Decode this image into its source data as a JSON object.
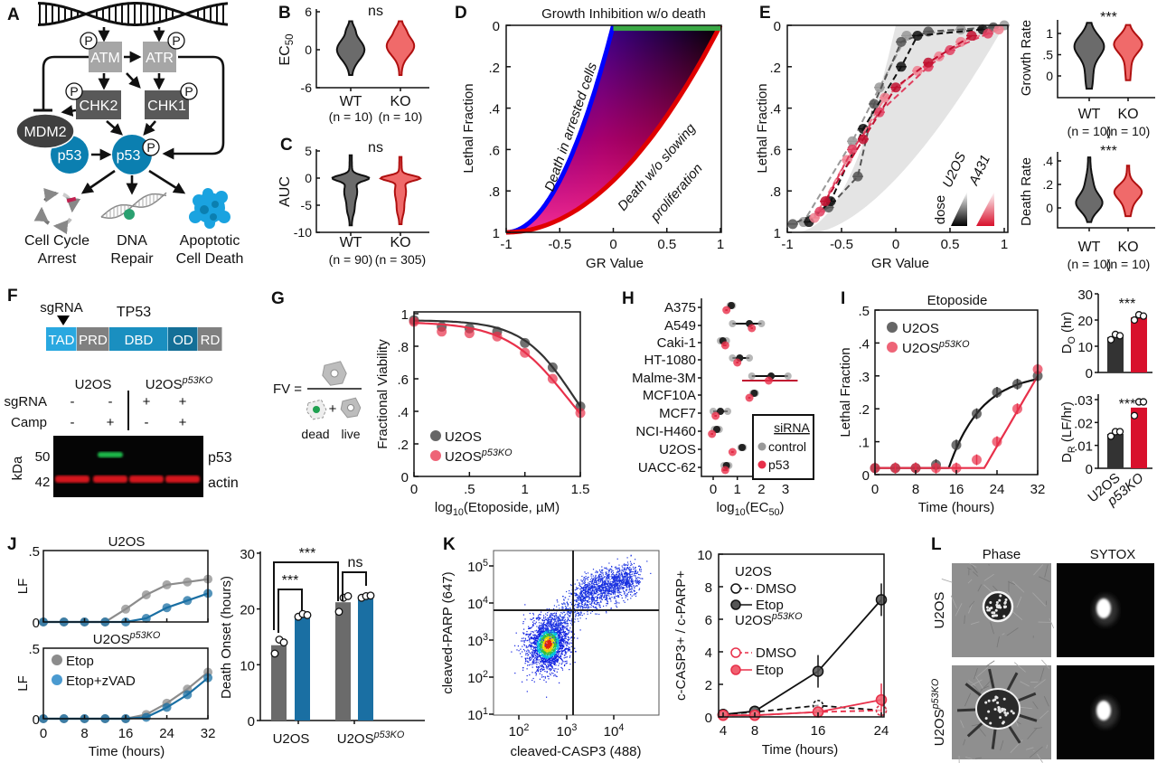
{
  "panel_letters": [
    "A",
    "B",
    "C",
    "D",
    "E",
    "F",
    "G",
    "H",
    "I",
    "J",
    "K",
    "L"
  ],
  "colors": {
    "wt": "#6b6b6b",
    "ko": "#f06a6a",
    "ko_stroke": "#b01010",
    "p53_blue": "#0b7fb0",
    "sig_red": "#e8202a",
    "ns_gray": "#a8a8a8",
    "zvad_blue": "#1a6fa3",
    "etop_gray": "#8c8c8c",
    "ko_red": "#d8102c"
  },
  "A": {
    "nodes": {
      "atm": "ATM",
      "atr": "ATR",
      "chk2": "CHK2",
      "chk1": "CHK1",
      "mdm2": "MDM2",
      "p53": "p53",
      "phospho": "P"
    },
    "outcomes": [
      {
        "line1": "Cell Cycle",
        "line2": "Arrest",
        "icon": "cell-cycle-icon"
      },
      {
        "line1": "DNA",
        "line2": "Repair",
        "icon": "dna-repair-icon"
      },
      {
        "line1": "Apoptotic",
        "line2": "Cell Death",
        "icon": "apoptotic-cell-icon"
      }
    ]
  },
  "B": {
    "ylabel": [
      {
        "text": "EC"
      },
      {
        "sub": "50"
      }
    ],
    "yticks": [
      "6",
      "0",
      "-6"
    ],
    "significance": "ns",
    "groups": [
      {
        "label": "WT",
        "n": "(n = 10)",
        "median": 0,
        "range": [
          -4,
          4.5
        ]
      },
      {
        "label": "KO",
        "n": "(n = 10)",
        "median": 0.5,
        "range": [
          -4,
          4.5
        ]
      }
    ]
  },
  "C": {
    "ylabel": "AUC",
    "yticks": [
      "5",
      "0",
      "-5",
      "-10"
    ],
    "significance": "ns",
    "groups": [
      {
        "label": "WT",
        "n": "(n = 90)",
        "mode": 0,
        "range": [
          -8.7,
          4.2
        ]
      },
      {
        "label": "KO",
        "n": "(n = 305)",
        "mode": 0,
        "range": [
          -8.5,
          3.9
        ]
      }
    ]
  },
  "D": {
    "title": "Growth Inhibition w/o death",
    "xlabel": "GR Value",
    "ylabel": "Lethal Fraction",
    "xticks": [
      "-1",
      "-0.5",
      "0",
      "0.5",
      "1"
    ],
    "yticks": [
      "0",
      ".2",
      ".4",
      ".6",
      ".8",
      "1"
    ],
    "annotation_blue": "Death in arrested cells",
    "annotation_red_1": "Death w/o slowing",
    "annotation_red_2": "proliferation",
    "colors": {
      "growth_inhibition": "#3aa845",
      "arrested": "#0000ff",
      "proliferating": "#e00000"
    }
  },
  "E": {
    "xlabel": "GR Value",
    "ylabel": "Lethal Fraction",
    "xticks": [
      "-1",
      "-0.5",
      "0",
      "0.5",
      "1"
    ],
    "yticks": [
      "0",
      ".2",
      ".4",
      ".6",
      ".8",
      "1"
    ],
    "legend": {
      "dose": "dose",
      "u2os": "U2OS",
      "a431": "A431"
    },
    "series": [
      {
        "cell_line": "U2OS",
        "points": [
          [
            1,
            0
          ],
          [
            0.6,
            0.02
          ],
          [
            0.1,
            0.05
          ],
          [
            -0.15,
            0.3
          ],
          [
            -0.4,
            0.56
          ],
          [
            -0.85,
            0.95
          ]
        ]
      },
      {
        "cell_line": "U2OS",
        "points": [
          [
            0.9,
            0.01
          ],
          [
            0.3,
            0.03
          ],
          [
            0.05,
            0.08
          ],
          [
            -0.2,
            0.38
          ],
          [
            -0.35,
            0.73
          ],
          [
            -0.62,
            0.88
          ],
          [
            -0.95,
            0.96
          ]
        ]
      },
      {
        "cell_line": "U2OS",
        "points": [
          [
            0.8,
            0.02
          ],
          [
            0.2,
            0.05
          ],
          [
            0.05,
            0.2
          ],
          [
            -0.3,
            0.5
          ],
          [
            -0.6,
            0.85
          ],
          [
            -0.8,
            0.95
          ]
        ]
      },
      {
        "cell_line": "A431",
        "points": [
          [
            0.95,
            0.02
          ],
          [
            0.6,
            0.08
          ],
          [
            0.4,
            0.15
          ],
          [
            0.2,
            0.22
          ],
          [
            -0.1,
            0.35
          ],
          [
            -0.45,
            0.65
          ],
          [
            -0.75,
            0.93
          ]
        ]
      },
      {
        "cell_line": "A431",
        "points": [
          [
            0.85,
            0.04
          ],
          [
            0.5,
            0.12
          ],
          [
            0.3,
            0.2
          ],
          [
            -0.15,
            0.42
          ],
          [
            -0.4,
            0.6
          ],
          [
            -0.7,
            0.9
          ]
        ]
      },
      {
        "cell_line": "A431",
        "points": [
          [
            0.7,
            0.05
          ],
          [
            0.3,
            0.18
          ],
          [
            0,
            0.3
          ],
          [
            -0.3,
            0.55
          ],
          [
            -0.65,
            0.85
          ]
        ]
      }
    ],
    "growth_rate": {
      "ylabel": "Growth Rate",
      "yticks": [
        "1",
        ".5",
        "0"
      ],
      "significance": "***",
      "groups": [
        {
          "label": "WT",
          "n": "(n = 10)",
          "mode": 0.7,
          "range": [
            -0.3,
            1.25
          ]
        },
        {
          "label": "KO",
          "n": "(n = 10)",
          "mode": 0.75,
          "range": [
            -0.1,
            1.2
          ]
        }
      ]
    },
    "death_rate": {
      "ylabel": "Death Rate",
      "yticks": [
        ".4",
        ".2",
        "0"
      ],
      "significance": "***",
      "groups": [
        {
          "label": "WT",
          "n": "(n = 10)",
          "mode": 0.05,
          "range": [
            -0.12,
            0.43
          ]
        },
        {
          "label": "KO",
          "n": "(n = 10)",
          "mode": 0.14,
          "range": [
            -0.07,
            0.36
          ]
        }
      ]
    }
  },
  "F": {
    "sgrna_label": "sgRNA",
    "gene": "TP53",
    "domains": [
      {
        "name": "TAD",
        "color": "#29a8e0"
      },
      {
        "name": "PRD",
        "color": "#808080"
      },
      {
        "name": "DBD",
        "color": "#1a8fc0"
      },
      {
        "name": "OD",
        "color": "#146f97"
      },
      {
        "name": "RD",
        "color": "#808080"
      }
    ],
    "cell_u2os": "U2OS",
    "cell_ko": [
      {
        "text": "U2OS"
      },
      {
        "sup": "p53KO",
        "italic": true
      }
    ],
    "rows": [
      {
        "label": "sgRNA",
        "values": [
          "-",
          "-",
          "+",
          "+"
        ]
      },
      {
        "label": "Camp",
        "values": [
          "-",
          "+",
          "-",
          "+"
        ]
      }
    ],
    "kda_label": "kDa",
    "markers": [
      {
        "kda": "50",
        "band": "p53",
        "color": "#1fb84a"
      },
      {
        "kda": "42",
        "band": "actin",
        "color": "#d4141c"
      }
    ],
    "p53_band_present": [
      false,
      true,
      false,
      false
    ]
  },
  "G": {
    "fv_label": "FV =",
    "dead": "dead",
    "live": "live",
    "plus": "+",
    "ylabel": "Fractional Viability",
    "xlabel": [
      {
        "text": "log"
      },
      {
        "sub": "10"
      },
      {
        "text": "(Etoposide, µM)"
      }
    ],
    "yticks": [
      "1",
      ".8",
      ".6",
      ".4",
      ".2",
      "0"
    ],
    "xticks": [
      "0",
      ".5",
      "1",
      "1.5"
    ],
    "legend": [
      [
        {
          "text": "U2OS"
        }
      ],
      [
        {
          "text": "U2OS"
        },
        {
          "sup": "p53KO",
          "italic": true
        }
      ]
    ],
    "x": [
      0,
      0.25,
      0.5,
      0.75,
      1,
      1.25,
      1.5
    ],
    "series": [
      {
        "name": "U2OS",
        "color": "#333333",
        "values": [
          0.96,
          0.92,
          0.91,
          0.89,
          0.82,
          0.67,
          0.43
        ]
      },
      {
        "name": "U2OS p53KO",
        "color": "#e8304a",
        "values": [
          0.95,
          0.89,
          0.88,
          0.86,
          0.76,
          0.6,
          0.39
        ]
      }
    ]
  },
  "H": {
    "cell_lines": [
      "A375",
      "A549",
      "Caki-1",
      "HT-1080",
      "Malme-3M",
      "MCF10A",
      "MCF7",
      "NCI-H460",
      "U2OS",
      "UACC-62"
    ],
    "control": [
      0.75,
      1.5,
      0.4,
      1.1,
      2.4,
      1.7,
      0.3,
      0.15,
      1.2,
      0.55
    ],
    "control_range": [
      [
        0.7,
        0.8
      ],
      [
        0.8,
        2.0
      ],
      [
        0.3,
        0.55
      ],
      [
        0.8,
        1.5
      ],
      [
        1.6,
        3.1
      ],
      [
        1.65,
        1.75
      ],
      [
        0,
        0.6
      ],
      [
        0.05,
        0.25
      ],
      [
        1.15,
        1.25
      ],
      [
        0.45,
        0.65
      ]
    ],
    "p53": [
      0.55,
      1.6,
      0.5,
      1.0,
      2.3,
      1.5,
      0.1,
      -0.05,
      0.8,
      0.5
    ],
    "p53_range": [
      [
        0.5,
        0.6
      ],
      [
        1.55,
        1.65
      ],
      [
        0.4,
        0.55
      ],
      [
        0.95,
        1.05
      ],
      [
        1.2,
        3.5
      ],
      [
        1.45,
        1.55
      ],
      [
        0.05,
        0.15
      ],
      [
        -0.1,
        0
      ],
      [
        0.75,
        0.85
      ],
      [
        0.4,
        0.6
      ]
    ],
    "xticks": [
      "0",
      "1",
      "2",
      "3"
    ],
    "xlabel": [
      {
        "text": "log"
      },
      {
        "sub": "10"
      },
      {
        "text": "(EC"
      },
      {
        "sub": "50"
      },
      {
        "text": ")"
      }
    ],
    "legend": {
      "title": "siRNA",
      "control": "control",
      "p53": "p53"
    }
  },
  "I": {
    "title": "Etoposide",
    "ylabel": "Lethal Fraction",
    "xlabel": "Time (hours)",
    "yticks": [
      ".5",
      ".4",
      ".3",
      ".2",
      ".1",
      "0"
    ],
    "xticks": [
      "0",
      "8",
      "16",
      "24",
      "32"
    ],
    "legend": [
      [
        {
          "text": "U2OS"
        }
      ],
      [
        {
          "text": "U2OS"
        },
        {
          "sup": "p53KO",
          "italic": true
        }
      ]
    ],
    "time": [
      0,
      4,
      8,
      12,
      16,
      20,
      24,
      28,
      32
    ],
    "series": [
      {
        "name": "U2OS",
        "color": "#333333",
        "values": [
          0.02,
          0.02,
          0.02,
          0.03,
          0.09,
          0.185,
          0.25,
          0.275,
          0.3
        ]
      },
      {
        "name": "U2OS p53KO",
        "color": "#e8304a",
        "values": [
          0.02,
          0.02,
          0.02,
          0.02,
          0.02,
          0.045,
          0.1,
          0.2,
          0.32
        ]
      }
    ],
    "onset": {
      "ylabel": [
        {
          "text": "D"
        },
        {
          "sub": "O"
        },
        {
          "text": " (hr)"
        }
      ],
      "yticks": [
        "30",
        "20",
        "10",
        "0"
      ],
      "significance": "***",
      "bars": [
        {
          "value": 13.5,
          "points": [
            12.5,
            14.5,
            14
          ]
        },
        {
          "value": 21,
          "points": [
            20,
            22,
            21.5
          ]
        }
      ]
    },
    "rate": {
      "ylabel": [
        {
          "text": "D"
        },
        {
          "sub": "R"
        },
        {
          "text": " (LF/hr)"
        }
      ],
      "yticks": [
        ".03",
        ".02",
        ".01",
        "0"
      ],
      "significance": "***",
      "bars": [
        {
          "value": 0.015,
          "points": [
            0.014,
            0.016,
            0.016
          ]
        },
        {
          "value": 0.0265,
          "points": [
            0.023,
            0.029,
            0.029
          ]
        }
      ]
    },
    "categories": [
      [
        {
          "text": "U2OS"
        }
      ],
      [
        {
          "text": "p53KO",
          "italic": true
        }
      ]
    ]
  },
  "J": {
    "top_title": [
      {
        "text": "U2OS"
      }
    ],
    "bottom_title": [
      {
        "text": "U2OS"
      },
      {
        "sup": "p53KO",
        "italic": true
      }
    ],
    "ylabel": "LF",
    "yticks": [
      ".5",
      "0"
    ],
    "xticks": [
      "0",
      "8",
      "16",
      "24",
      "32"
    ],
    "xlabel": "Time (hours)",
    "legend": {
      "etop": "Etop",
      "zvad": "Etop+zVAD"
    },
    "time": [
      0,
      4,
      8,
      12,
      16,
      20,
      24,
      28,
      32
    ],
    "u2os": {
      "etop": [
        0,
        0,
        0,
        0,
        0.09,
        0.19,
        0.26,
        0.28,
        0.3
      ],
      "zvad": [
        0,
        0,
        0,
        0,
        0,
        0.025,
        0.1,
        0.15,
        0.2
      ]
    },
    "ko": {
      "etop": [
        0,
        0,
        0,
        0,
        0,
        0.03,
        0.11,
        0.21,
        0.33
      ],
      "zvad": [
        0,
        0,
        0,
        0,
        0,
        0.01,
        0.08,
        0.17,
        0.29
      ]
    },
    "bar_chart": {
      "ylabel": "Death Onset (hours)",
      "yticks": [
        "30",
        "20",
        "10",
        "0"
      ],
      "categories": [
        [
          {
            "text": "U2OS"
          }
        ],
        [
          {
            "text": "U2OS"
          },
          {
            "sup": "p53KO",
            "italic": true
          }
        ]
      ],
      "bars": [
        {
          "group": 0,
          "treatment": "Etop",
          "value": 13.5,
          "points": [
            12,
            14.5,
            14
          ]
        },
        {
          "group": 0,
          "treatment": "Etop+zVAD",
          "value": 18.8,
          "points": [
            18.6,
            19.1,
            18.9
          ]
        },
        {
          "group": 1,
          "treatment": "Etop",
          "value": 21.2,
          "points": [
            19.5,
            22,
            22.3
          ]
        },
        {
          "group": 1,
          "treatment": "Etop+zVAD",
          "value": 22.2,
          "points": [
            22,
            22.3,
            22.4
          ]
        }
      ],
      "significance": [
        "***",
        "***",
        "ns"
      ]
    }
  },
  "K": {
    "flow": {
      "ylabel": "cleaved-PARP (647)",
      "xlabel": "cleaved-CASP3 (488)",
      "yticks": [
        {
          "base": "10",
          "exp": "5"
        },
        {
          "base": "10",
          "exp": "4"
        },
        {
          "base": "10",
          "exp": "3"
        },
        {
          "base": "10",
          "exp": "2"
        },
        {
          "base": "10",
          "exp": "1"
        }
      ],
      "xticks": [
        {
          "base": "10",
          "exp": "2"
        },
        {
          "base": "10",
          "exp": "3"
        },
        {
          "base": "10",
          "exp": "4"
        }
      ]
    },
    "line": {
      "ylabel": "c-CASP3+ / c-PARP+",
      "xlabel": "Time (hours)",
      "yticks": [
        "10",
        "8",
        "6",
        "4",
        "2",
        "0"
      ],
      "xticks": [
        "4",
        "8",
        "16",
        "24"
      ],
      "time": [
        4,
        8,
        16,
        24
      ],
      "legend_u2os": [
        {
          "text": "U2OS"
        }
      ],
      "legend_ko": [
        {
          "text": "U2OS"
        },
        {
          "sup": "p53KO",
          "italic": true
        }
      ],
      "dmso": "DMSO",
      "etop": "Etop",
      "series": [
        {
          "cell": "U2OS",
          "treatment": "DMSO",
          "values": [
            0.15,
            0.3,
            0.7,
            0.4
          ]
        },
        {
          "cell": "U2OS",
          "treatment": "Etop",
          "values": [
            0.15,
            0.35,
            2.8,
            7.2
          ]
        },
        {
          "cell": "U2OS p53KO",
          "treatment": "DMSO",
          "values": [
            0.1,
            0.1,
            0.3,
            0.4
          ]
        },
        {
          "cell": "U2OS p53KO",
          "treatment": "Etop",
          "values": [
            0.1,
            0.1,
            0.3,
            1.05
          ]
        }
      ]
    }
  },
  "L": {
    "columns": [
      "Phase",
      "SYTOX"
    ],
    "rows": [
      [
        {
          "text": "U2OS"
        }
      ],
      [
        {
          "text": "U2OS"
        },
        {
          "sup": "p53KO",
          "italic": true
        }
      ]
    ]
  }
}
